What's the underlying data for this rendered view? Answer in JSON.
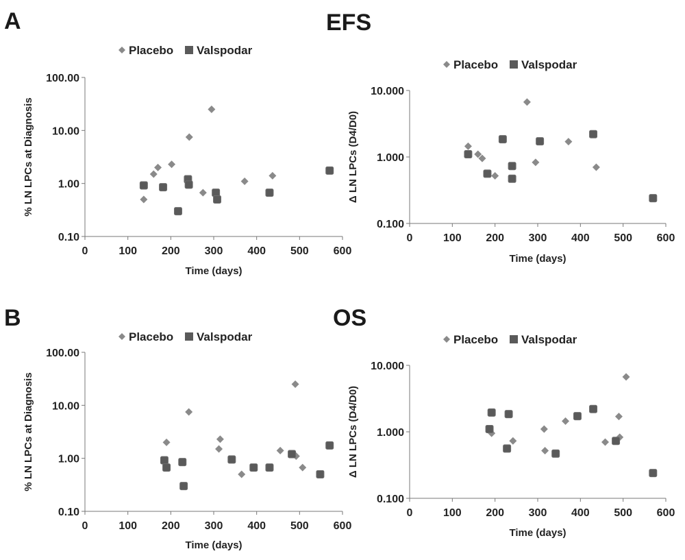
{
  "figure": {
    "row_a": {
      "letter": "A",
      "title": "EFS"
    },
    "row_b": {
      "letter": "B",
      "title": "OS"
    }
  },
  "colors": {
    "placebo": "#8a8a8a",
    "valspodar": "#5a5a5a",
    "axis": "#777777",
    "text": "#222222"
  },
  "chart_data": [
    {
      "type": "scatter",
      "title": "",
      "xlabel": "Time (days)",
      "ylabel": "% LN LPCs  at Diagnosis",
      "xlim": [
        0,
        600
      ],
      "ylim": [
        0.1,
        100
      ],
      "yscale": "log",
      "xticks": [
        "0",
        "100",
        "200",
        "300",
        "400",
        "500",
        "600"
      ],
      "yticks": [
        "0.10",
        "1.00",
        "10.00",
        "100.00"
      ],
      "legend": [
        "Placebo",
        "Valspodar"
      ],
      "legend_position": "top-center",
      "grid": false,
      "series": [
        {
          "name": "Placebo",
          "marker": "diamond",
          "x": [
            137,
            160,
            170,
            202,
            243,
            275,
            295,
            372,
            437
          ],
          "y": [
            0.5,
            1.5,
            2.0,
            2.3,
            7.5,
            0.67,
            25,
            1.1,
            1.4
          ]
        },
        {
          "name": "Valspodar",
          "marker": "square",
          "x": [
            137,
            182,
            217,
            240,
            242,
            305,
            308,
            430,
            570
          ],
          "y": [
            0.92,
            0.85,
            0.3,
            1.2,
            0.95,
            0.67,
            0.5,
            0.67,
            1.75
          ]
        }
      ]
    },
    {
      "type": "scatter",
      "title": "",
      "xlabel": "Time (days)",
      "ylabel": "Δ LN LPCs (D4/D0)",
      "xlim": [
        0,
        600
      ],
      "ylim": [
        0.1,
        10
      ],
      "yscale": "log",
      "xticks": [
        "0",
        "100",
        "200",
        "300",
        "400",
        "500",
        "600"
      ],
      "yticks": [
        "0.100",
        "1.000",
        "10.000"
      ],
      "legend": [
        "Placebo",
        "Valspodar"
      ],
      "legend_position": "top-center",
      "grid": false,
      "series": [
        {
          "name": "Placebo",
          "marker": "diamond",
          "x": [
            137,
            160,
            170,
            200,
            275,
            295,
            372,
            437
          ],
          "y": [
            1.45,
            1.1,
            0.95,
            0.52,
            6.7,
            0.83,
            1.7,
            0.7
          ]
        },
        {
          "name": "Valspodar",
          "marker": "square",
          "x": [
            137,
            182,
            218,
            240,
            240,
            305,
            430,
            570
          ],
          "y": [
            1.1,
            0.56,
            1.85,
            0.73,
            0.47,
            1.72,
            2.2,
            0.24
          ]
        }
      ]
    },
    {
      "type": "scatter",
      "title": "",
      "xlabel": "Time (days)",
      "ylabel": "% LN LPCs  at Diagnosis",
      "xlim": [
        0,
        600
      ],
      "ylim": [
        0.1,
        100
      ],
      "yscale": "log",
      "xticks": [
        "0",
        "100",
        "200",
        "300",
        "400",
        "500",
        "600"
      ],
      "yticks": [
        "0.10",
        "1.00",
        "10.00",
        "100.00"
      ],
      "legend": [
        "Placebo",
        "Valspodar"
      ],
      "legend_position": "top-center",
      "grid": false,
      "series": [
        {
          "name": "Placebo",
          "marker": "diamond",
          "x": [
            190,
            242,
            312,
            315,
            365,
            455,
            490,
            492,
            507
          ],
          "y": [
            2.0,
            7.5,
            1.5,
            2.3,
            0.5,
            1.4,
            25,
            1.1,
            0.67
          ]
        },
        {
          "name": "Valspodar",
          "marker": "square",
          "x": [
            185,
            190,
            227,
            230,
            342,
            393,
            430,
            482,
            548,
            570
          ],
          "y": [
            0.92,
            0.67,
            0.85,
            0.3,
            0.95,
            0.67,
            0.67,
            1.2,
            0.5,
            1.75
          ]
        }
      ]
    },
    {
      "type": "scatter",
      "title": "",
      "xlabel": "Time (days)",
      "ylabel": "Δ LN LPCs (D4/D0)",
      "xlim": [
        0,
        600
      ],
      "ylim": [
        0.1,
        10
      ],
      "yscale": "log",
      "xticks": [
        "0",
        "100",
        "200",
        "300",
        "400",
        "500",
        "600"
      ],
      "yticks": [
        "0.100",
        "1.000",
        "10.000"
      ],
      "legend": [
        "Placebo",
        "Valspodar"
      ],
      "legend_position": "top-center",
      "grid": false,
      "series": [
        {
          "name": "Placebo",
          "marker": "diamond",
          "x": [
            192,
            242,
            315,
            317,
            365,
            458,
            490,
            492,
            507
          ],
          "y": [
            0.95,
            0.73,
            1.1,
            0.52,
            1.45,
            0.7,
            1.7,
            0.83,
            6.7
          ]
        },
        {
          "name": "Valspodar",
          "marker": "square",
          "x": [
            187,
            192,
            228,
            232,
            342,
            393,
            430,
            483,
            570
          ],
          "y": [
            1.1,
            1.95,
            0.56,
            1.85,
            0.47,
            1.72,
            2.2,
            0.73,
            0.24
          ]
        }
      ]
    }
  ]
}
